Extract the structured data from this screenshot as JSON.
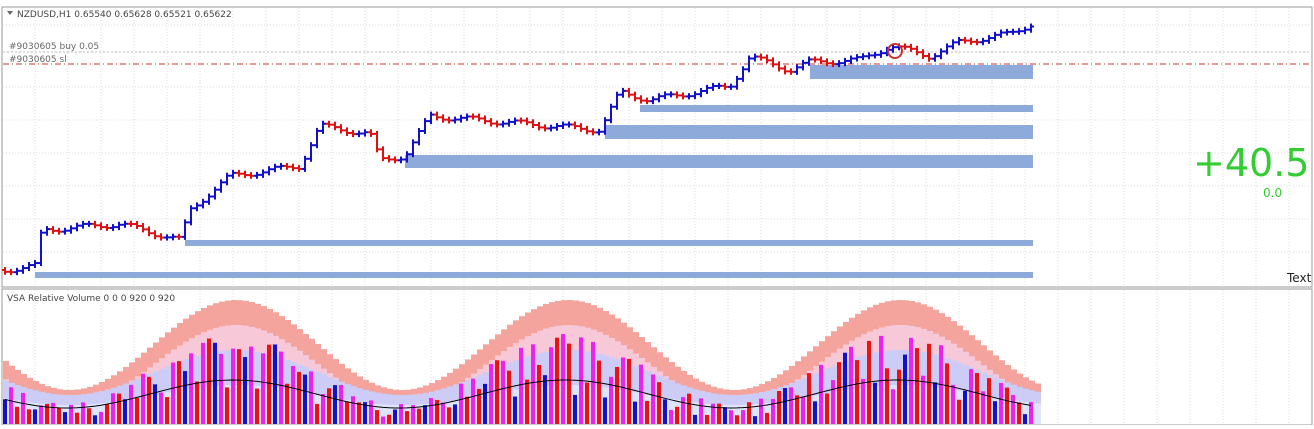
{
  "header": {
    "symbol_line": "NZDUSD,H1  0.65540 0.65628 0.65521 0.65622"
  },
  "orders": [
    "#9030605 buy 0.05",
    "#9030605 sl"
  ],
  "profit": {
    "main": "+40.5",
    "sub": "0.0"
  },
  "corner_label": "Text",
  "indicator": {
    "title": "VSA Relative Volume 0 0 0 920 0 920"
  }
}
